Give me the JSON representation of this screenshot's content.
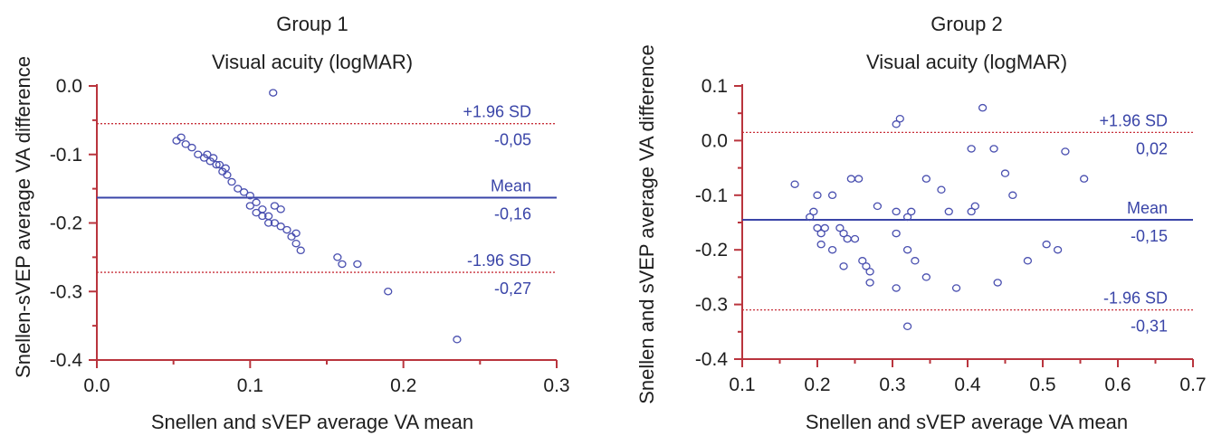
{
  "chart_data": [
    {
      "type": "scatter",
      "title": "Group 1",
      "subtitle": "Visual acuity (logMAR)",
      "xlabel": "Snellen and sVEP average VA mean",
      "ylabel": "Snellen-sVEP average VA difference",
      "xlim": [
        0.0,
        0.3
      ],
      "ylim": [
        -0.4,
        0.0
      ],
      "xticks": [
        "0.0",
        "0.1",
        "0.2",
        "0.3"
      ],
      "yticks": [
        "0.0",
        "-0.1",
        "-0.2",
        "-0.3",
        "-0.4"
      ],
      "grid": false,
      "points": [
        {
          "x": 0.115,
          "y": -0.01
        },
        {
          "x": 0.052,
          "y": -0.08
        },
        {
          "x": 0.055,
          "y": -0.075
        },
        {
          "x": 0.058,
          "y": -0.085
        },
        {
          "x": 0.062,
          "y": -0.09
        },
        {
          "x": 0.066,
          "y": -0.1
        },
        {
          "x": 0.07,
          "y": -0.105
        },
        {
          "x": 0.074,
          "y": -0.11
        },
        {
          "x": 0.078,
          "y": -0.115
        },
        {
          "x": 0.082,
          "y": -0.125
        },
        {
          "x": 0.085,
          "y": -0.13
        },
        {
          "x": 0.088,
          "y": -0.14
        },
        {
          "x": 0.092,
          "y": -0.15
        },
        {
          "x": 0.072,
          "y": -0.1
        },
        {
          "x": 0.076,
          "y": -0.105
        },
        {
          "x": 0.08,
          "y": -0.115
        },
        {
          "x": 0.084,
          "y": -0.12
        },
        {
          "x": 0.096,
          "y": -0.155
        },
        {
          "x": 0.1,
          "y": -0.16
        },
        {
          "x": 0.1,
          "y": -0.175
        },
        {
          "x": 0.104,
          "y": -0.17
        },
        {
          "x": 0.104,
          "y": -0.185
        },
        {
          "x": 0.108,
          "y": -0.18
        },
        {
          "x": 0.108,
          "y": -0.19
        },
        {
          "x": 0.112,
          "y": -0.19
        },
        {
          "x": 0.112,
          "y": -0.2
        },
        {
          "x": 0.116,
          "y": -0.2
        },
        {
          "x": 0.116,
          "y": -0.175
        },
        {
          "x": 0.12,
          "y": -0.205
        },
        {
          "x": 0.12,
          "y": -0.18
        },
        {
          "x": 0.124,
          "y": -0.21
        },
        {
          "x": 0.127,
          "y": -0.22
        },
        {
          "x": 0.13,
          "y": -0.23
        },
        {
          "x": 0.13,
          "y": -0.215
        },
        {
          "x": 0.133,
          "y": -0.24
        },
        {
          "x": 0.157,
          "y": -0.25
        },
        {
          "x": 0.16,
          "y": -0.26
        },
        {
          "x": 0.17,
          "y": -0.26
        },
        {
          "x": 0.19,
          "y": -0.3
        },
        {
          "x": 0.235,
          "y": -0.37
        }
      ],
      "reference_lines": [
        {
          "label": "+1.96 SD",
          "value_label": "-0,05",
          "value": -0.055,
          "style": "dotted"
        },
        {
          "label": "Mean",
          "value_label": "-0,16",
          "value": -0.163,
          "style": "solid"
        },
        {
          "label": "-1.96 SD",
          "value_label": "-0,27",
          "value": -0.272,
          "style": "dotted"
        }
      ]
    },
    {
      "type": "scatter",
      "title": "Group 2",
      "subtitle": "Visual acuity (logMAR)",
      "xlabel": "Snellen and sVEP average VA mean",
      "ylabel": "Snellen and sVEP average VA difference",
      "xlim": [
        0.1,
        0.7
      ],
      "ylim": [
        -0.4,
        0.1
      ],
      "xticks": [
        "0.1",
        "0.2",
        "0.3",
        "0.4",
        "0.5",
        "0.6",
        "0.7"
      ],
      "yticks": [
        "0.1",
        "0.0",
        "-0.1",
        "-0.2",
        "-0.3",
        "-0.4"
      ],
      "grid": false,
      "points": [
        {
          "x": 0.17,
          "y": -0.08
        },
        {
          "x": 0.19,
          "y": -0.14
        },
        {
          "x": 0.195,
          "y": -0.13
        },
        {
          "x": 0.2,
          "y": -0.1
        },
        {
          "x": 0.2,
          "y": -0.16
        },
        {
          "x": 0.205,
          "y": -0.17
        },
        {
          "x": 0.205,
          "y": -0.19
        },
        {
          "x": 0.21,
          "y": -0.16
        },
        {
          "x": 0.22,
          "y": -0.1
        },
        {
          "x": 0.22,
          "y": -0.2
        },
        {
          "x": 0.23,
          "y": -0.16
        },
        {
          "x": 0.235,
          "y": -0.17
        },
        {
          "x": 0.24,
          "y": -0.18
        },
        {
          "x": 0.235,
          "y": -0.23
        },
        {
          "x": 0.245,
          "y": -0.07
        },
        {
          "x": 0.255,
          "y": -0.07
        },
        {
          "x": 0.25,
          "y": -0.18
        },
        {
          "x": 0.26,
          "y": -0.22
        },
        {
          "x": 0.265,
          "y": -0.23
        },
        {
          "x": 0.27,
          "y": -0.24
        },
        {
          "x": 0.27,
          "y": -0.26
        },
        {
          "x": 0.28,
          "y": -0.12
        },
        {
          "x": 0.305,
          "y": 0.03
        },
        {
          "x": 0.31,
          "y": 0.04
        },
        {
          "x": 0.305,
          "y": -0.13
        },
        {
          "x": 0.305,
          "y": -0.17
        },
        {
          "x": 0.305,
          "y": -0.27
        },
        {
          "x": 0.32,
          "y": -0.14
        },
        {
          "x": 0.325,
          "y": -0.13
        },
        {
          "x": 0.32,
          "y": -0.2
        },
        {
          "x": 0.33,
          "y": -0.22
        },
        {
          "x": 0.32,
          "y": -0.34
        },
        {
          "x": 0.345,
          "y": -0.07
        },
        {
          "x": 0.345,
          "y": -0.25
        },
        {
          "x": 0.365,
          "y": -0.09
        },
        {
          "x": 0.375,
          "y": -0.13
        },
        {
          "x": 0.385,
          "y": -0.27
        },
        {
          "x": 0.405,
          "y": -0.015
        },
        {
          "x": 0.405,
          "y": -0.13
        },
        {
          "x": 0.41,
          "y": -0.12
        },
        {
          "x": 0.42,
          "y": 0.06
        },
        {
          "x": 0.435,
          "y": -0.015
        },
        {
          "x": 0.44,
          "y": -0.26
        },
        {
          "x": 0.45,
          "y": -0.06
        },
        {
          "x": 0.46,
          "y": -0.1
        },
        {
          "x": 0.48,
          "y": -0.22
        },
        {
          "x": 0.505,
          "y": -0.19
        },
        {
          "x": 0.52,
          "y": -0.2
        },
        {
          "x": 0.53,
          "y": -0.02
        },
        {
          "x": 0.555,
          "y": -0.07
        }
      ],
      "reference_lines": [
        {
          "label": "+1.96 SD",
          "value_label": "0,02",
          "value": 0.015,
          "style": "dotted"
        },
        {
          "label": "Mean",
          "value_label": "-0,15",
          "value": -0.145,
          "style": "solid"
        },
        {
          "label": "-1.96 SD",
          "value_label": "-0,31",
          "value": -0.31,
          "style": "dotted"
        }
      ]
    }
  ],
  "colors": {
    "axis": "#b9343d",
    "points": "#4a50b0",
    "mean_line": "#3a45a8",
    "sd_line": "#c8303a",
    "label_text": "#3a45a8",
    "text": "#1e1e1e"
  }
}
